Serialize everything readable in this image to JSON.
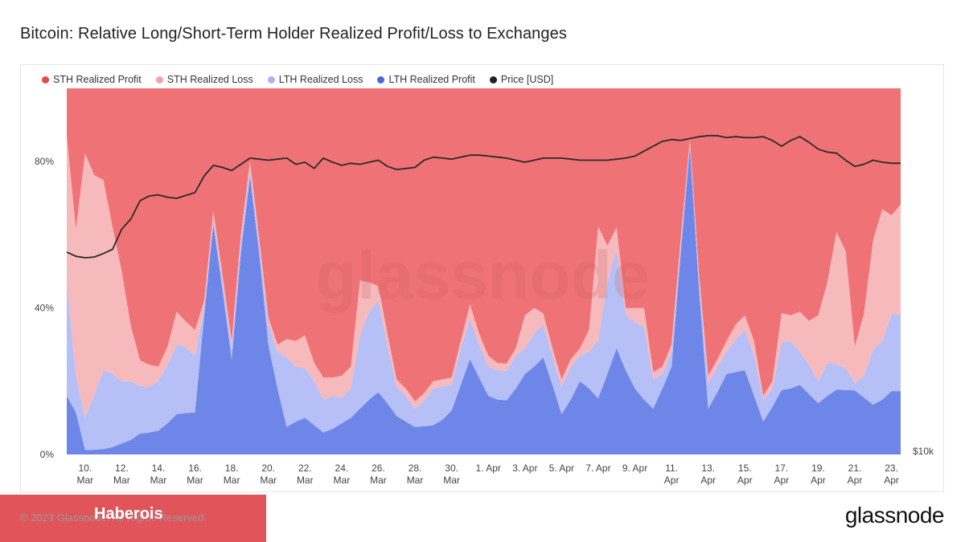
{
  "header": {
    "title": "Bitcoin: Relative Long/Short-Term Holder Realized Profit/Loss to Exchanges"
  },
  "legend": {
    "items": [
      {
        "label": "STH Realized Profit",
        "color": "#e8484e"
      },
      {
        "label": "STH Realized Loss",
        "color": "#f4a3a5"
      },
      {
        "label": "LTH Realized Loss",
        "color": "#a7b4f2"
      },
      {
        "label": "LTH Realized Profit",
        "color": "#4a66e0"
      },
      {
        "label": "Price [USD]",
        "color": "#222222"
      }
    ]
  },
  "footer": {
    "copyright": "© 2023 Glassnode. All Rights Reserved.",
    "badge": "Haberois",
    "brand": "glassnode"
  },
  "watermark": "glassnode",
  "chart_data": {
    "type": "area",
    "title": "Bitcoin: Relative Long/Short-Term Holder Realized Profit/Loss to Exchanges",
    "stacking": "percent",
    "x": [
      "9 Mar",
      "9.5 Mar",
      "10 Mar",
      "10.5 Mar",
      "11 Mar",
      "11.5 Mar",
      "12 Mar",
      "12.5 Mar",
      "13 Mar",
      "13.5 Mar",
      "14 Mar",
      "14.5 Mar",
      "15 Mar",
      "15.5 Mar",
      "16 Mar",
      "16.5 Mar",
      "17 Mar",
      "17.5 Mar",
      "18 Mar",
      "18.5 Mar",
      "19 Mar",
      "19.5 Mar",
      "20 Mar",
      "20.5 Mar",
      "21 Mar",
      "21.5 Mar",
      "22 Mar",
      "22.5 Mar",
      "23 Mar",
      "23.5 Mar",
      "24 Mar",
      "24.5 Mar",
      "25 Mar",
      "25.5 Mar",
      "26 Mar",
      "26.5 Mar",
      "27 Mar",
      "27.5 Mar",
      "28 Mar",
      "28.5 Mar",
      "29 Mar",
      "29.5 Mar",
      "30 Mar",
      "30.5 Mar",
      "31 Mar",
      "31.5 Mar",
      "1 Apr",
      "1.5 Apr",
      "2 Apr",
      "2.5 Apr",
      "3 Apr",
      "3.5 Apr",
      "4 Apr",
      "4.5 Apr",
      "5 Apr",
      "5.5 Apr",
      "6 Apr",
      "6.5 Apr",
      "7 Apr",
      "7.5 Apr",
      "8 Apr",
      "8.5 Apr",
      "9 Apr",
      "9.5 Apr",
      "10 Apr",
      "10.5 Apr",
      "11 Apr",
      "11.5 Apr",
      "12 Apr",
      "12.5 Apr",
      "13 Apr",
      "13.5 Apr",
      "14 Apr",
      "14.5 Apr",
      "15 Apr",
      "15.5 Apr",
      "16 Apr",
      "16.5 Apr",
      "17 Apr",
      "17.5 Apr",
      "18 Apr",
      "18.5 Apr",
      "19 Apr",
      "19.5 Apr",
      "20 Apr",
      "20.5 Apr",
      "21 Apr",
      "21.5 Apr",
      "22 Apr",
      "22.5 Apr",
      "23 Apr",
      "23.5 Apr"
    ],
    "series": [
      {
        "name": "LTH Realized Profit",
        "color": "#6e86e8",
        "values": [
          16,
          11.5,
          1.2,
          1.3,
          1.5,
          2,
          3,
          4,
          5.7,
          6,
          6.5,
          8.5,
          11,
          11.3,
          11.5,
          38,
          63,
          45,
          26,
          55,
          76,
          55,
          30,
          18,
          7.5,
          9,
          10,
          8,
          6,
          7,
          8.5,
          10,
          12.5,
          15,
          17,
          14,
          10.5,
          9,
          7.5,
          7.7,
          8,
          9.5,
          12,
          19,
          26,
          21,
          16,
          15,
          14.8,
          18,
          22,
          24,
          26.5,
          19,
          11,
          15,
          20,
          18,
          15.3,
          22,
          29,
          23,
          18,
          15,
          12.5,
          18,
          24,
          55,
          84,
          45,
          12.5,
          17,
          22,
          22.5,
          23,
          16,
          9,
          13,
          17.6,
          18,
          19,
          16.5,
          14,
          16,
          17.7,
          17.6,
          17.5,
          15.5,
          13.6,
          15,
          17.3,
          17.3
        ]
      },
      {
        "name": "LTH Realized Loss",
        "color": "#b6c0f6",
        "values": [
          31,
          10,
          9,
          15,
          21.5,
          20,
          17,
          16,
          13,
          12.5,
          13.5,
          16,
          19,
          18,
          15.5,
          2,
          1.5,
          2,
          3,
          3,
          2,
          2,
          5.5,
          10,
          19,
          15,
          13.5,
          12,
          9,
          9,
          7,
          8,
          20,
          24,
          25,
          16,
          8,
          7,
          5,
          7,
          10,
          9,
          7,
          10,
          11,
          9,
          8,
          8,
          8,
          9,
          7,
          9,
          9,
          8,
          7.5,
          9,
          7,
          10,
          16,
          25,
          27,
          15,
          18,
          20,
          8,
          4,
          4,
          2,
          1,
          2,
          7,
          7,
          6,
          9,
          11,
          11,
          6,
          5,
          13,
          13,
          9,
          8,
          6,
          9,
          7,
          6,
          2,
          6,
          15,
          16,
          21,
          21
        ]
      },
      {
        "name": "STH Realized Loss",
        "color": "#f7babc",
        "values": [
          40,
          40,
          72,
          60,
          52,
          40,
          30,
          15,
          7,
          6,
          4,
          5,
          9,
          7,
          7,
          2,
          2,
          2,
          2,
          2,
          2,
          2,
          2,
          2,
          5,
          7,
          9,
          5,
          6,
          5,
          6,
          6,
          15,
          8,
          4,
          3,
          2,
          2,
          2,
          2,
          2,
          2,
          2,
          2,
          4,
          3,
          3,
          2,
          2,
          2,
          9,
          7,
          3,
          2,
          2,
          2,
          2,
          6,
          31,
          10,
          6,
          2,
          4,
          5,
          2,
          2,
          2,
          2,
          1,
          2,
          2,
          2,
          3,
          4,
          4,
          4,
          1,
          2,
          8,
          7,
          11,
          12,
          18,
          22,
          36,
          32,
          10,
          17,
          30,
          36,
          27,
          30
        ]
      },
      {
        "name": "STH Realized Profit",
        "color": "#ef7376",
        "values": [
          13,
          38.5,
          17.8,
          23.7,
          25,
          38,
          50,
          65,
          74.3,
          75.5,
          76,
          70.5,
          61,
          63.7,
          66,
          58,
          33.5,
          51,
          69,
          40,
          20,
          41,
          62.5,
          70,
          68.5,
          69,
          67.5,
          75,
          79,
          79,
          78.5,
          76,
          52.5,
          53,
          54,
          67,
          79.5,
          82,
          85.5,
          83.3,
          80,
          79.5,
          79,
          69,
          59,
          67,
          73,
          75,
          75.2,
          71,
          62,
          60,
          61.5,
          71,
          79.5,
          74,
          71,
          66,
          37.7,
          43,
          38,
          60,
          60,
          60,
          77.5,
          76,
          70,
          41,
          14,
          51,
          78.5,
          74,
          69,
          64.5,
          62,
          69,
          84,
          80,
          61.4,
          62,
          61,
          63.5,
          62,
          53,
          39.3,
          45.4,
          70.5,
          61.5,
          49.4,
          33,
          34.7,
          31.7
        ]
      }
    ],
    "price": {
      "name": "Price [USD]",
      "color": "#2a2a2a",
      "values": [
        20300,
        20000,
        19900,
        19950,
        20200,
        20500,
        22000,
        22800,
        24300,
        24700,
        24800,
        24600,
        24500,
        24750,
        25000,
        26500,
        27500,
        27300,
        27000,
        27600,
        28200,
        28100,
        28000,
        28100,
        28200,
        27600,
        27800,
        27200,
        28200,
        27800,
        27500,
        27700,
        27600,
        27800,
        28000,
        27400,
        27100,
        27200,
        27300,
        28000,
        28300,
        28200,
        28100,
        28300,
        28500,
        28500,
        28400,
        28300,
        28200,
        28000,
        27800,
        28000,
        28200,
        28200,
        28200,
        28100,
        28000,
        28000,
        28000,
        28000,
        28100,
        28200,
        28400,
        28900,
        29400,
        29900,
        30100,
        30000,
        30200,
        30400,
        30500,
        30500,
        30300,
        30400,
        30300,
        30300,
        30400,
        30000,
        29400,
        30000,
        30400,
        29800,
        29100,
        28800,
        28700,
        28000,
        27400,
        27600,
        28000,
        27800,
        27700,
        27700
      ]
    },
    "x_tick_labels": [
      [
        "10.",
        "Mar"
      ],
      [
        "12.",
        "Mar"
      ],
      [
        "14.",
        "Mar"
      ],
      [
        "16.",
        "Mar"
      ],
      [
        "18.",
        "Mar"
      ],
      [
        "20.",
        "Mar"
      ],
      [
        "22.",
        "Mar"
      ],
      [
        "24.",
        "Mar"
      ],
      [
        "26.",
        "Mar"
      ],
      [
        "28.",
        "Mar"
      ],
      [
        "30.",
        "Mar"
      ],
      [
        "1. Apr",
        ""
      ],
      [
        "3. Apr",
        ""
      ],
      [
        "5. Apr",
        ""
      ],
      [
        "7. Apr",
        ""
      ],
      [
        "9. Apr",
        ""
      ],
      [
        "11.",
        "Apr"
      ],
      [
        "13.",
        "Apr"
      ],
      [
        "15.",
        "Apr"
      ],
      [
        "17.",
        "Apr"
      ],
      [
        "19.",
        "Apr"
      ],
      [
        "21.",
        "Apr"
      ],
      [
        "23.",
        "Apr"
      ]
    ],
    "x_tick_indices": [
      2,
      6,
      10,
      14,
      18,
      22,
      26,
      30,
      34,
      38,
      42,
      46,
      50,
      54,
      58,
      62,
      66,
      70,
      74,
      78,
      82,
      86,
      90
    ],
    "y_ticks": [
      {
        "value": 0,
        "label": "0%"
      },
      {
        "value": 40,
        "label": "40%"
      },
      {
        "value": 80,
        "label": "80%"
      }
    ],
    "ylim": [
      0,
      100
    ],
    "price_axis": {
      "scale": "log",
      "min": 10000,
      "max": 36000,
      "tick_label": "$10k"
    },
    "legend_position": "top-left",
    "grid": false
  }
}
